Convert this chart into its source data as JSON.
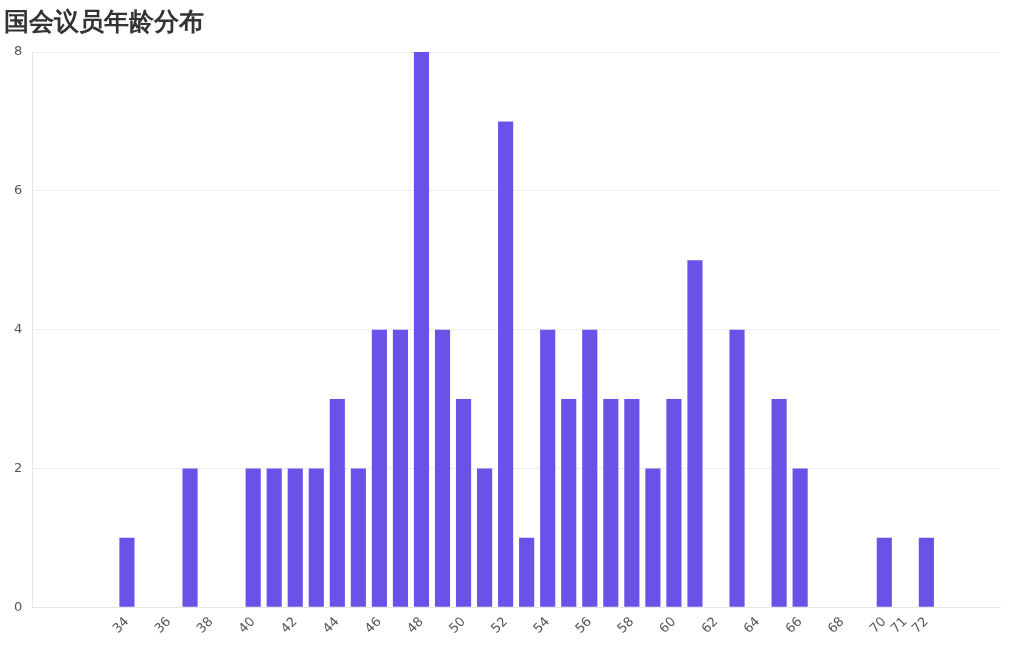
{
  "chart_data": {
    "type": "bar",
    "title": "国会议员年龄分布",
    "categories": [
      null,
      null,
      null,
      null,
      "34",
      null,
      "36",
      null,
      "38",
      null,
      "40",
      null,
      "42",
      null,
      "44",
      null,
      "46",
      null,
      "48",
      null,
      "50",
      null,
      "52",
      null,
      "54",
      null,
      "56",
      null,
      "58",
      null,
      "60",
      null,
      "62",
      null,
      "64",
      null,
      "66",
      null,
      "68",
      null,
      "70",
      "71",
      "72",
      null,
      null,
      null
    ],
    "values": [
      0,
      0,
      0,
      0,
      1,
      0,
      0,
      2,
      0,
      0,
      2,
      2,
      2,
      2,
      3,
      2,
      4,
      4,
      8,
      4,
      3,
      2,
      7,
      1,
      4,
      3,
      4,
      3,
      3,
      2,
      3,
      5,
      0,
      4,
      0,
      3,
      2,
      0,
      0,
      0,
      1,
      0,
      1,
      0,
      0,
      0
    ],
    "color": "#6a52e8",
    "ylim": [
      0,
      8
    ],
    "yticks": [
      0,
      2,
      4,
      6,
      8
    ],
    "grid": "y"
  }
}
